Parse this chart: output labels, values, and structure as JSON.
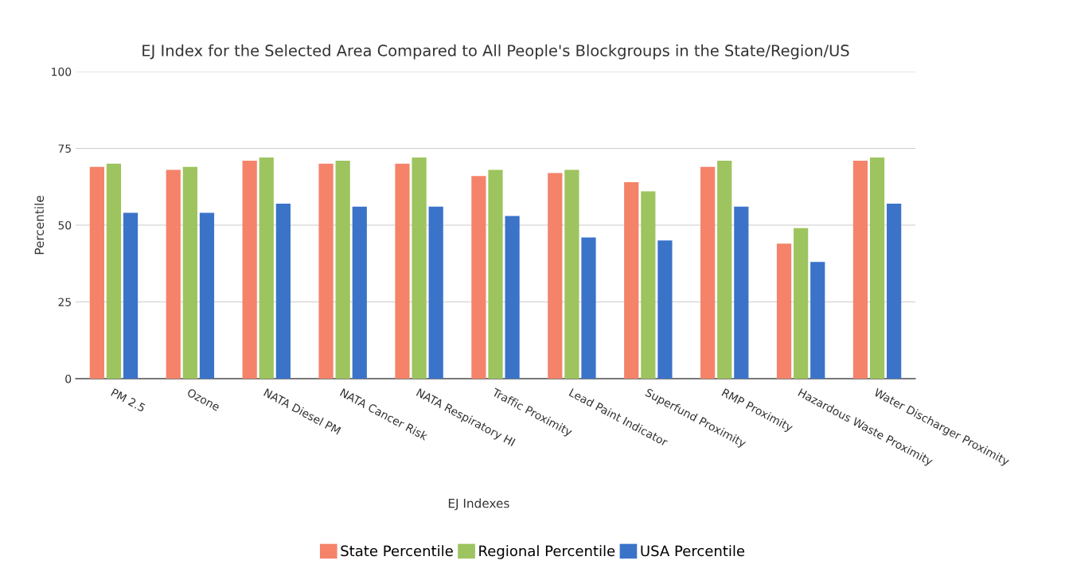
{
  "chart_data": {
    "type": "bar",
    "title": "EJ Index for the Selected Area Compared to All People's Blockgroups in the State/Region/US",
    "xlabel": "EJ Indexes",
    "ylabel": "Percentile",
    "categories": [
      "PM 2.5",
      "Ozone",
      "NATA Diesel PM",
      "NATA Cancer Risk",
      "NATA Respiratory HI",
      "Traffic Proximity",
      "Lead Paint Indicator",
      "Superfund Proximity",
      "RMP Proximity",
      "Hazardous Waste Proximity",
      "Water Discharger Proximity"
    ],
    "series": [
      {
        "name": "State Percentile",
        "color": "#f4836a",
        "values": [
          69,
          68,
          71,
          70,
          70,
          66,
          67,
          64,
          69,
          44,
          71
        ]
      },
      {
        "name": "Regional Percentile",
        "color": "#9dc45f",
        "values": [
          70,
          69,
          72,
          71,
          72,
          68,
          68,
          61,
          71,
          49,
          72
        ]
      },
      {
        "name": "USA Percentile",
        "color": "#3b73c9",
        "values": [
          54,
          54,
          57,
          56,
          56,
          53,
          46,
          45,
          56,
          38,
          57
        ]
      }
    ],
    "ylim": [
      0,
      100
    ],
    "yticks": [
      0,
      25,
      50,
      75,
      100
    ],
    "grid": "y",
    "legend": "bottom"
  }
}
